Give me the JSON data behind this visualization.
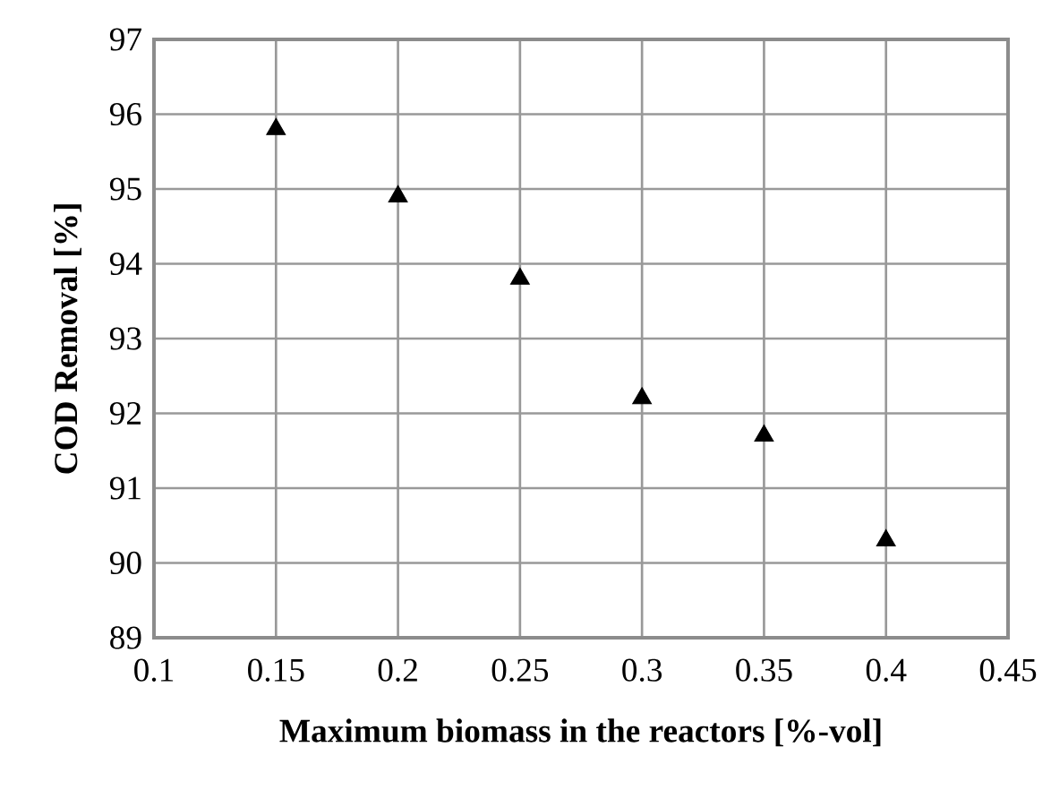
{
  "chart_data": {
    "type": "scatter",
    "xlabel": "Maximum biomass in the reactors [%-vol]",
    "ylabel": "COD Removal [%]",
    "x": [
      0.15,
      0.2,
      0.25,
      0.3,
      0.35,
      0.4
    ],
    "series": [
      {
        "color": "#000000",
        "values": [
          95.8,
          94.9,
          93.8,
          92.2,
          91.7,
          90.3
        ]
      }
    ],
    "xlim": [
      0.1,
      0.45
    ],
    "ylim": [
      89,
      97
    ],
    "xticks": [
      0.1,
      0.15,
      0.2,
      0.25,
      0.3,
      0.35,
      0.4,
      0.45
    ],
    "yticks": [
      89,
      90,
      91,
      92,
      93,
      94,
      95,
      96,
      97
    ],
    "grid": true,
    "marker": "triangle"
  }
}
